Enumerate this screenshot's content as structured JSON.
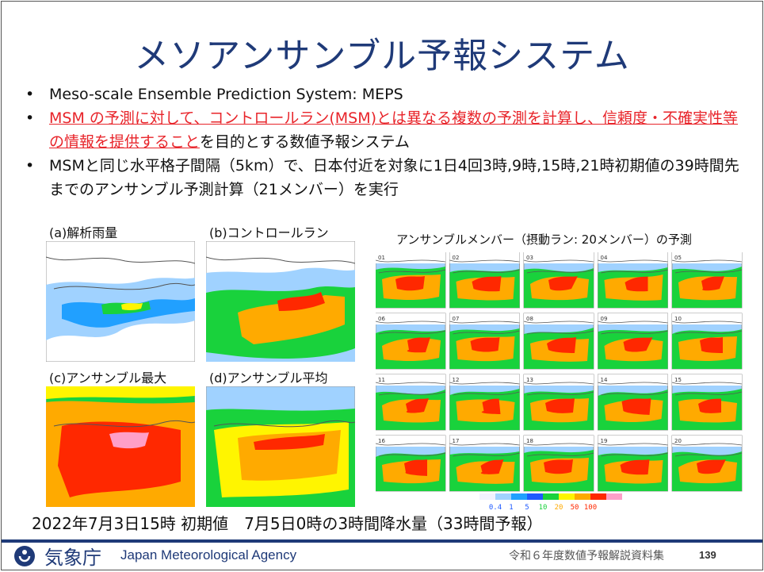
{
  "title": "メソアンサンブル予報システム",
  "bullets": [
    {
      "dot": "•",
      "text": "Meso-scale Ensemble Prediction System: MEPS"
    },
    {
      "dot": "•",
      "red_underlined": "MSM の予測に対して、コントロールラン(MSM)とは異なる複数の予測を計算し、信頼度・不確実性等の情報を提供すること",
      "rest": "を目的とする数値予報システム"
    },
    {
      "dot": "•",
      "text": "MSMと同じ水平格子間隔（5km）で、日本付近を対象に1日4回3時,9時,15時,21時初期値の39時間先までのアンサンブル予測計算（21メンバー）を実行"
    }
  ],
  "panels": {
    "a": "(a)解析雨量",
    "b": "(b)コントロールラン",
    "c": "(c)アンサンブル最大",
    "d": "(d)アンサンブル平均"
  },
  "members_title": "アンサンブルメンバー（摂動ラン: 20メンバー）の予測",
  "member_labels": [
    "01",
    "02",
    "03",
    "04",
    "05",
    "06",
    "07",
    "08",
    "09",
    "10",
    "11",
    "12",
    "13",
    "14",
    "15",
    "16",
    "17",
    "18",
    "19",
    "20"
  ],
  "legend": {
    "ticks": [
      "0.4",
      "1",
      "5",
      "10",
      "20",
      "50",
      "100"
    ],
    "colors": [
      "#f2f2ff",
      "#a0d2ff",
      "#21a0ff",
      "#1e5aff",
      "#19d23c",
      "#fff500",
      "#ffaa00",
      "#ff2800",
      "#ff9fc8"
    ]
  },
  "caption": "2022年7月3日15時 初期値　7月5日0時の3時間降水量（33時間予報）",
  "footer": {
    "agency_jp": "気象庁",
    "agency_en": "Japan Meteorological Agency",
    "doc_title": "令和６年度数値予報解説資料集",
    "page": "139"
  }
}
